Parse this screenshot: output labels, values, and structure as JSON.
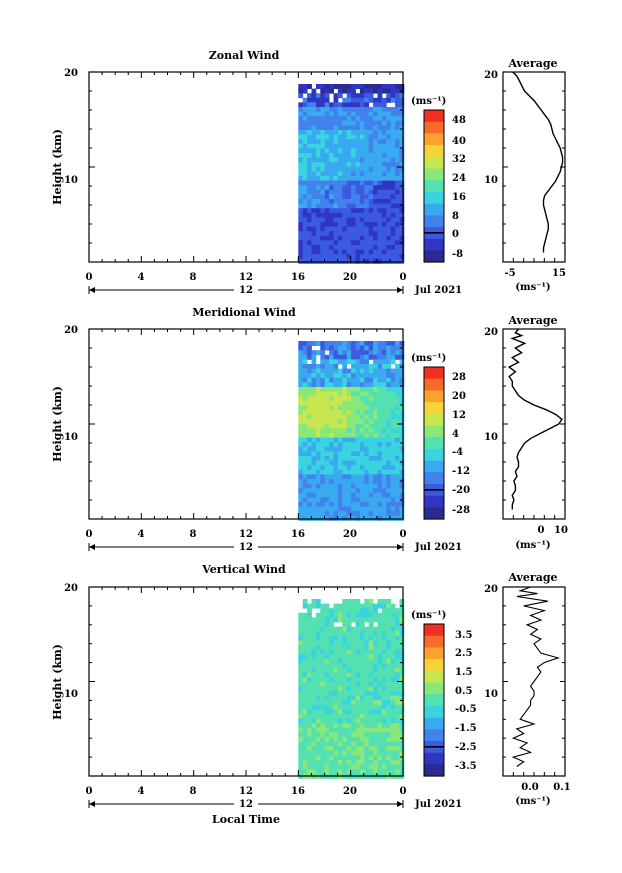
{
  "figure": {
    "xlabel": "Local Time",
    "date_label": "Jul 2021",
    "day_label": "12"
  },
  "chart_data": [
    {
      "type": "heatmap",
      "title": "Zonal Wind",
      "ylabel": "Height (km)",
      "xlabel": "Local Time",
      "x_ticks": [
        "0",
        "4",
        "8",
        "12",
        "16",
        "20",
        "0"
      ],
      "y_ticks": [
        "20",
        "10"
      ],
      "ylim": [
        0,
        20
      ],
      "x_range_hours": [
        0,
        24
      ],
      "data_x_start": 16,
      "day_label": "12",
      "date_label": "Jul 2021",
      "colorbar": {
        "unit": "(ms⁻¹)",
        "labels": [
          "48",
          "40",
          "32",
          "24",
          "16",
          "8",
          "0",
          "-8"
        ],
        "colors": [
          "#f03020",
          "#f86a28",
          "#fca030",
          "#f6d438",
          "#c8e650",
          "#8ae878",
          "#54e0b0",
          "#3ad4e0",
          "#3aaaf0",
          "#4282ec",
          "#3a5ae0",
          "#3036c4",
          "#2a2a90"
        ],
        "zero_level": 0
      },
      "profile": {
        "title": "Average",
        "x_ticks": [
          "-5",
          "15"
        ],
        "y_ticks": [
          "20",
          "10"
        ],
        "xlabel": "(ms⁻¹)",
        "xlim": [
          -8,
          18
        ],
        "x": [
          9,
          9,
          9.5,
          10,
          10.5,
          11,
          11,
          10.5,
          10,
          9.5,
          9,
          9,
          9.5,
          11,
          12.5,
          14,
          15,
          16,
          16.5,
          17,
          17,
          16.5,
          16,
          15,
          14,
          13,
          12.5,
          12,
          11,
          9.5,
          8,
          6.5,
          5,
          3,
          1,
          0,
          -1,
          -2,
          -3,
          -4,
          -4
        ],
        "y": [
          1,
          1.5,
          2,
          2.5,
          3,
          3.5,
          4,
          4.5,
          5,
          5.5,
          6,
          6.5,
          7,
          7.5,
          8,
          8.5,
          9,
          9.5,
          10,
          10.5,
          11,
          11.5,
          12,
          12.5,
          13,
          13.5,
          14,
          14.5,
          15,
          15.5,
          16,
          16.5,
          17,
          17.5,
          18,
          18.5,
          19,
          19.5,
          19.8,
          20,
          20
        ]
      }
    },
    {
      "type": "heatmap",
      "title": "Meridional Wind",
      "ylabel": "Height (km)",
      "xlabel": "Local Time",
      "x_ticks": [
        "0",
        "4",
        "8",
        "12",
        "16",
        "20",
        "0"
      ],
      "y_ticks": [
        "20",
        "10"
      ],
      "ylim": [
        0,
        20
      ],
      "x_range_hours": [
        0,
        24
      ],
      "data_x_start": 16,
      "day_label": "12",
      "date_label": "Jul 2021",
      "colorbar": {
        "unit": "(ms⁻¹)",
        "labels": [
          "28",
          "20",
          "12",
          "4",
          "-4",
          "-12",
          "-20",
          "-28"
        ],
        "colors": [
          "#f03020",
          "#f86a28",
          "#fca030",
          "#f6d438",
          "#c8e650",
          "#8ae878",
          "#54e0b0",
          "#3ad4e0",
          "#3aaaf0",
          "#4282ec",
          "#3a5ae0",
          "#3036c4",
          "#2a2a90"
        ],
        "zero_level": 0
      },
      "profile": {
        "title": "Average",
        "x_ticks": [
          "0",
          "10"
        ],
        "y_ticks": [
          "20",
          "10"
        ],
        "xlabel": "(ms⁻¹)",
        "xlim": [
          -8,
          12
        ],
        "x": [
          -5,
          -5,
          -4.5,
          -5,
          -4,
          -4,
          -4.5,
          -3.5,
          -4,
          -3,
          -3,
          -3.5,
          -3,
          -2,
          -1,
          1,
          4,
          7,
          10,
          11,
          9,
          6,
          2,
          -1,
          -3,
          -4,
          -5,
          -5,
          -6,
          -4,
          -6,
          -3,
          -5,
          -2,
          -4,
          -1,
          -5,
          -2,
          -4,
          -3
        ],
        "y": [
          1,
          1.5,
          2,
          2.5,
          3,
          3.5,
          4,
          4.5,
          5,
          5.5,
          6,
          6.5,
          7,
          7.5,
          8,
          8.5,
          9,
          9.5,
          10,
          10.5,
          11,
          11.5,
          12,
          12.5,
          13,
          13.5,
          14,
          14.5,
          15,
          15.5,
          16,
          16.5,
          17,
          17.5,
          18,
          18.5,
          19,
          19.3,
          19.6,
          20
        ]
      }
    },
    {
      "type": "heatmap",
      "title": "Vertical Wind",
      "ylabel": "Height (km)",
      "xlabel": "Local Time",
      "x_ticks": [
        "0",
        "4",
        "8",
        "12",
        "16",
        "20",
        "0"
      ],
      "y_ticks": [
        "20",
        "10"
      ],
      "ylim": [
        0,
        20
      ],
      "x_range_hours": [
        0,
        24
      ],
      "data_x_start": 16,
      "day_label": "12",
      "date_label": "Jul 2021",
      "colorbar": {
        "unit": "(ms⁻¹)",
        "labels": [
          "3.5",
          "2.5",
          "1.5",
          "0.5",
          "-0.5",
          "-1.5",
          "-2.5",
          "-3.5"
        ],
        "colors": [
          "#f03020",
          "#f86a28",
          "#fca030",
          "#f6d438",
          "#c8e650",
          "#8ae878",
          "#54e0b0",
          "#3ad4e0",
          "#3aaaf0",
          "#4282ec",
          "#3a5ae0",
          "#3036c4",
          "#2a2a90"
        ],
        "zero_level": 0
      },
      "profile": {
        "title": "Average",
        "x_ticks": [
          "0.0",
          "0.1"
        ],
        "y_ticks": [
          "20",
          "10"
        ],
        "xlabel": "(ms⁻¹)",
        "xlim": [
          -0.08,
          0.1
        ],
        "x": [
          -0.04,
          -0.02,
          -0.05,
          0.0,
          -0.03,
          -0.01,
          -0.05,
          -0.02,
          -0.04,
          0.01,
          -0.03,
          -0.02,
          -0.01,
          0.0,
          0.0,
          0.01,
          0.01,
          0.0,
          0.01,
          0.02,
          0.03,
          0.02,
          0.04,
          0.08,
          0.03,
          0.02,
          0.01,
          0.03,
          0.0,
          0.02,
          -0.01,
          0.03,
          0.0,
          0.04,
          -0.02,
          0.05,
          -0.04,
          0.02,
          -0.03,
          0.0
        ],
        "y": [
          1,
          1.5,
          2,
          2.5,
          3,
          3.5,
          4,
          4.5,
          5,
          5.5,
          6,
          6.5,
          7,
          7.5,
          8,
          8.5,
          9,
          9.5,
          10,
          10.5,
          11,
          11.5,
          12,
          12.5,
          13,
          13.5,
          14,
          14.5,
          15,
          15.5,
          16,
          16.5,
          17,
          17.5,
          18,
          18.5,
          19,
          19.3,
          19.6,
          20
        ]
      }
    }
  ]
}
